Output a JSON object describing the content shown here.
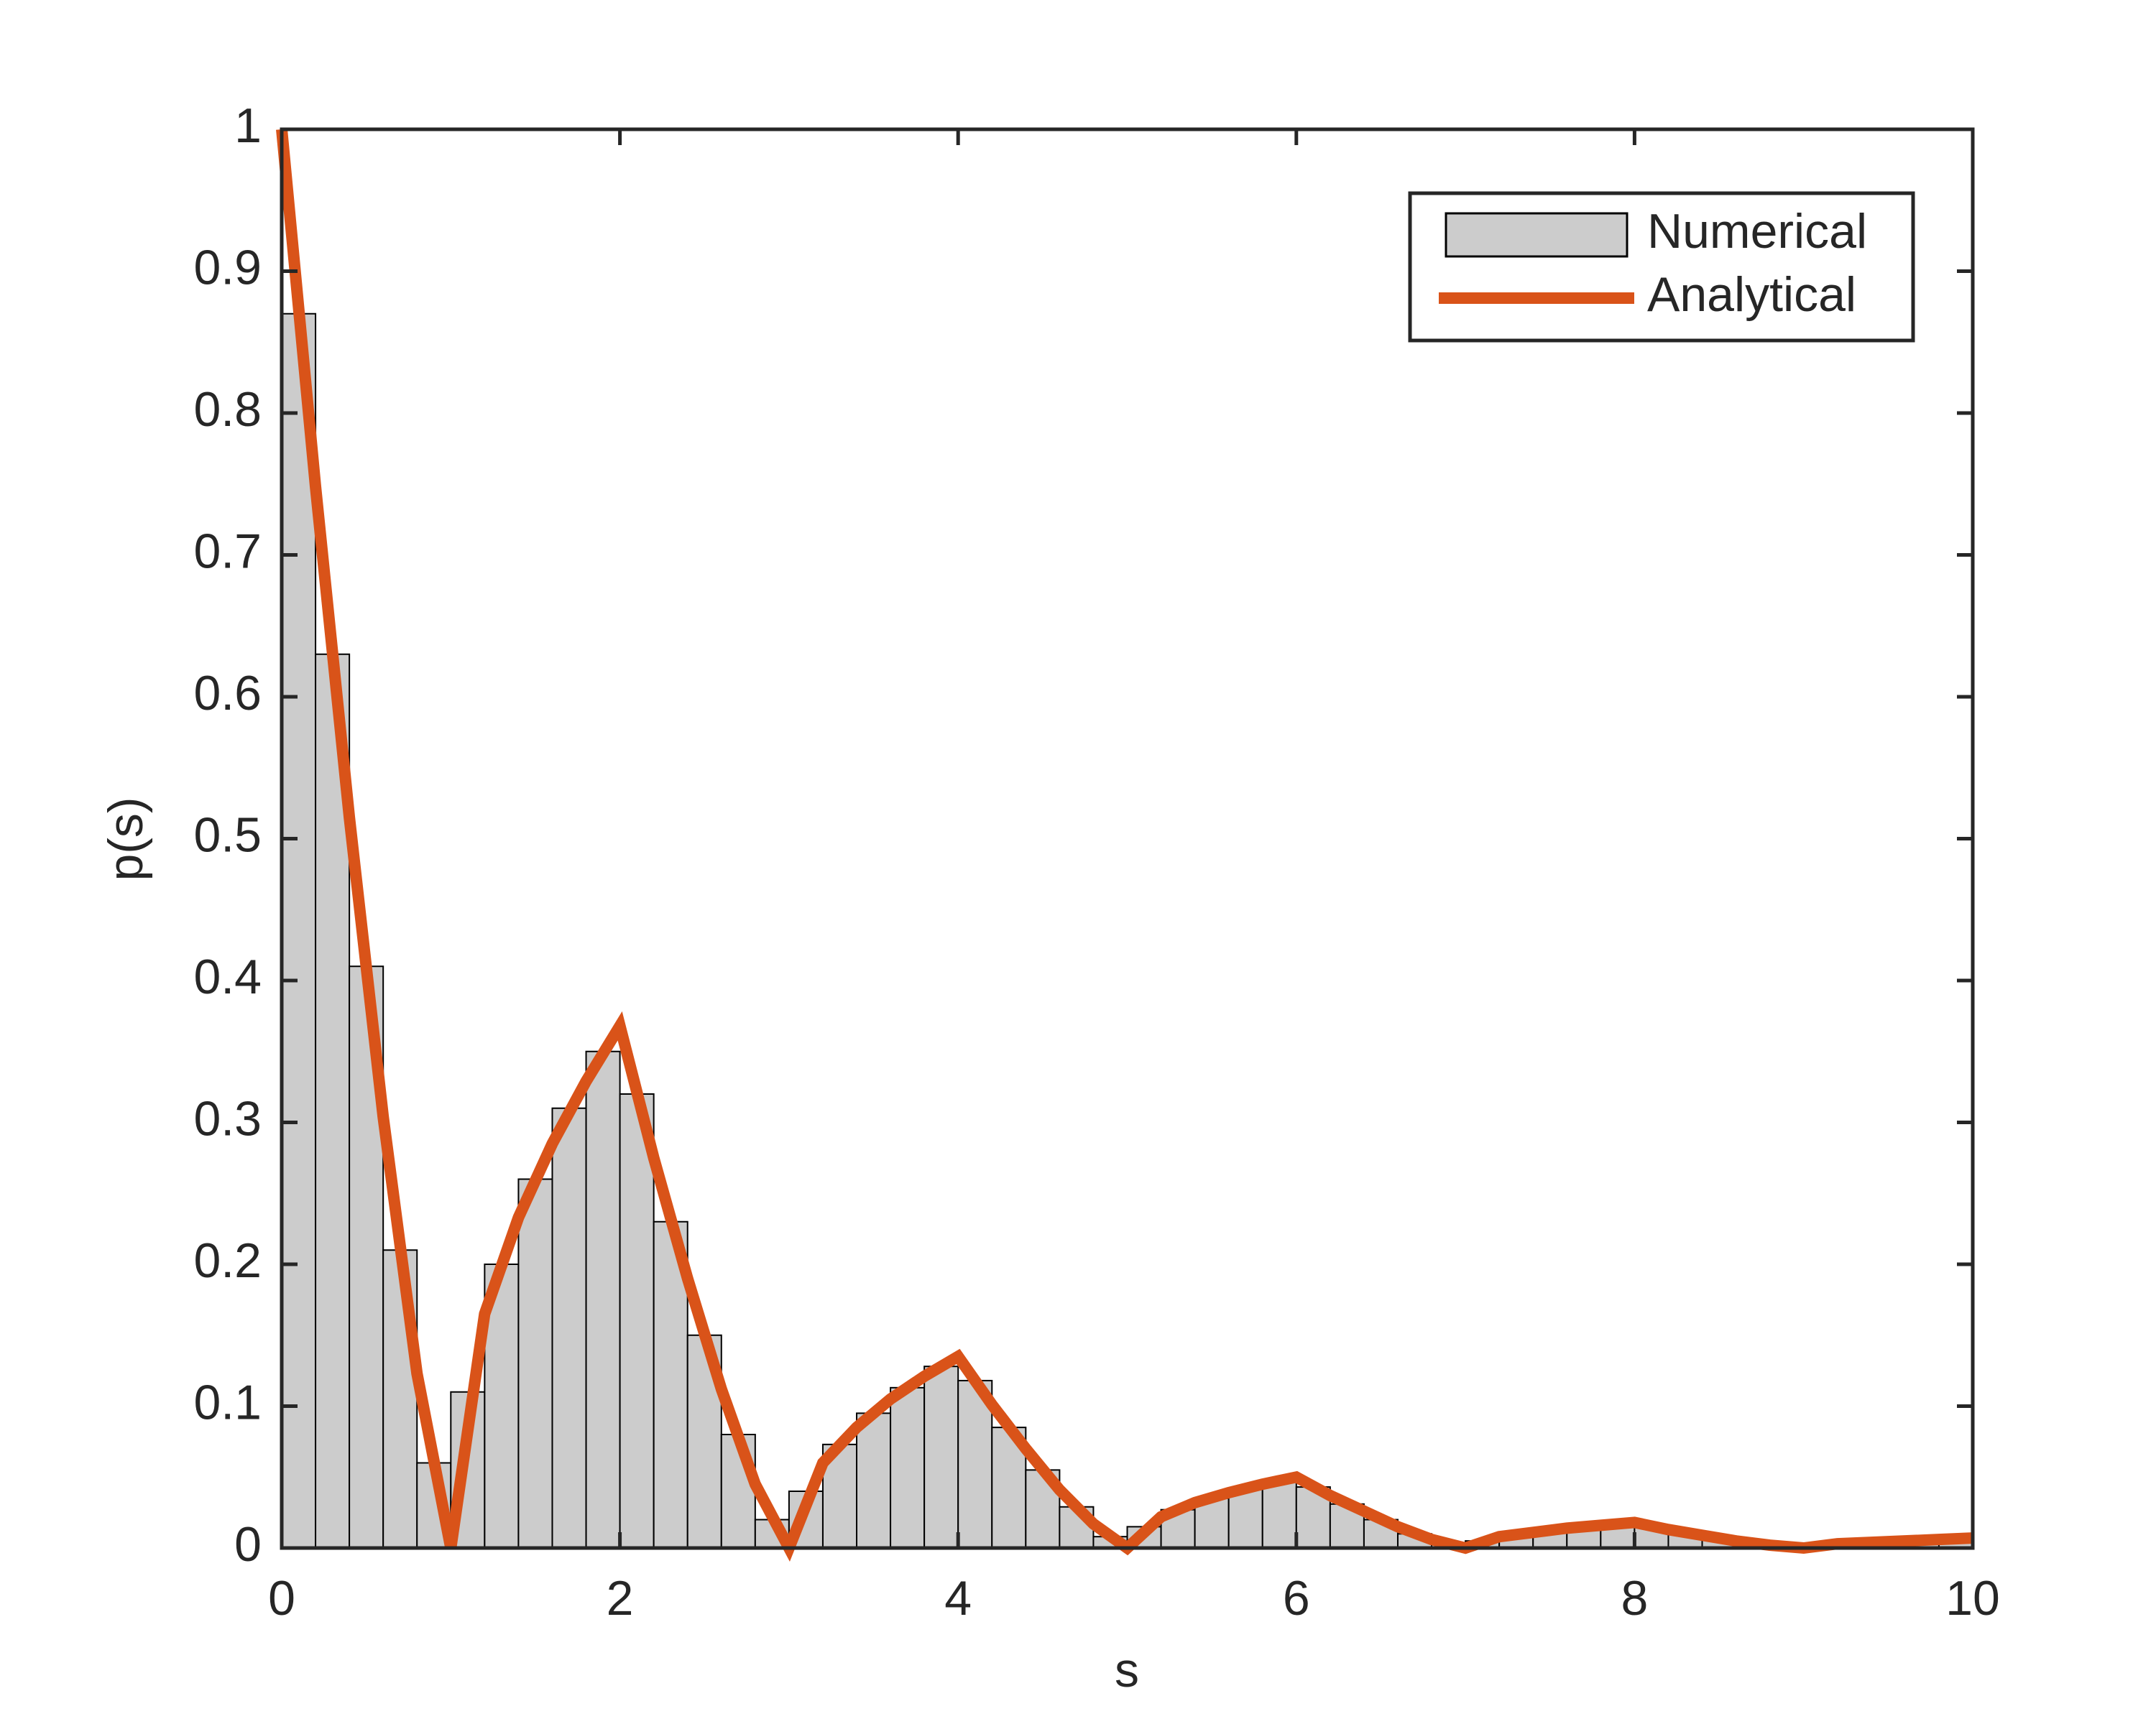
{
  "chart_data": {
    "type": "histogram",
    "xlabel": "s",
    "ylabel": "p(s)",
    "xlim": [
      0,
      10
    ],
    "ylim": [
      0,
      1
    ],
    "xticks": [
      0,
      2,
      4,
      6,
      8,
      10
    ],
    "yticks": [
      0,
      0.1,
      0.2,
      0.3,
      0.4,
      0.5,
      0.6,
      0.7,
      0.8,
      0.9,
      1
    ],
    "legend": "upper right",
    "bins": [
      0,
      0.2,
      0.4,
      0.6,
      0.8,
      1,
      1.2,
      1.4,
      1.6,
      1.8,
      2,
      2.2,
      2.4,
      2.6,
      2.8,
      3,
      3.2,
      3.4,
      3.6,
      3.8,
      4,
      4.2,
      4.4,
      4.6,
      4.8,
      5,
      5.2,
      5.4,
      5.6,
      5.8,
      6,
      6.2,
      6.4,
      6.6,
      6.8,
      7,
      7.2,
      7.4,
      7.6,
      7.8,
      8,
      8.2,
      8.4,
      8.6,
      8.8,
      9,
      9.2,
      9.4,
      9.6,
      9.8,
      10
    ],
    "series": [
      {
        "name": "Numerical",
        "type": "histogram",
        "color": "#cccccc",
        "values": [
          0.87,
          0.63,
          0.41,
          0.21,
          0.06,
          0.11,
          0.2,
          0.26,
          0.31,
          0.35,
          0.32,
          0.23,
          0.15,
          0.08,
          0.02,
          0.04,
          0.073,
          0.095,
          0.113,
          0.128,
          0.118,
          0.085,
          0.055,
          0.029,
          0.008,
          0.015,
          0.027,
          0.035,
          0.042,
          0.047,
          0.043,
          0.031,
          0.02,
          0.01,
          0.003,
          0.005,
          0.01,
          0.012,
          0.015,
          0.017,
          0.015,
          0.011,
          0.007,
          0.003,
          0.001,
          0.002,
          0.003,
          0.004,
          0.005,
          0.006
        ]
      },
      {
        "name": "Analytical",
        "type": "line",
        "color": "#d95319",
        "x": [
          0,
          0.2,
          0.4,
          0.6,
          0.8,
          1,
          1.2,
          1.4,
          1.6,
          1.8,
          2,
          2.2,
          2.4,
          2.6,
          2.8,
          3,
          3.2,
          3.4,
          3.6,
          3.8,
          4,
          4.2,
          4.4,
          4.6,
          4.8,
          5,
          5.2,
          5.4,
          5.6,
          5.8,
          6,
          6.2,
          6.4,
          6.6,
          6.8,
          7,
          7.2,
          7.4,
          7.6,
          7.8,
          8,
          8.2,
          8.4,
          8.6,
          8.8,
          9,
          9.2,
          9.4,
          9.6,
          9.8,
          10
        ],
        "values": [
          1,
          0.748,
          0.515,
          0.304,
          0.123,
          0,
          0.165,
          0.233,
          0.285,
          0.329,
          0.368,
          0.275,
          0.19,
          0.112,
          0.045,
          0,
          0.06,
          0.085,
          0.105,
          0.121,
          0.135,
          0.101,
          0.07,
          0.041,
          0.017,
          0,
          0.022,
          0.032,
          0.039,
          0.045,
          0.05,
          0.037,
          0.026,
          0.015,
          0.006,
          0,
          0.008,
          0.011,
          0.014,
          0.016,
          0.018,
          0.013,
          0.009,
          0.005,
          0.002,
          0,
          0.003,
          0.004,
          0.005,
          0.006,
          0.007
        ]
      }
    ]
  }
}
